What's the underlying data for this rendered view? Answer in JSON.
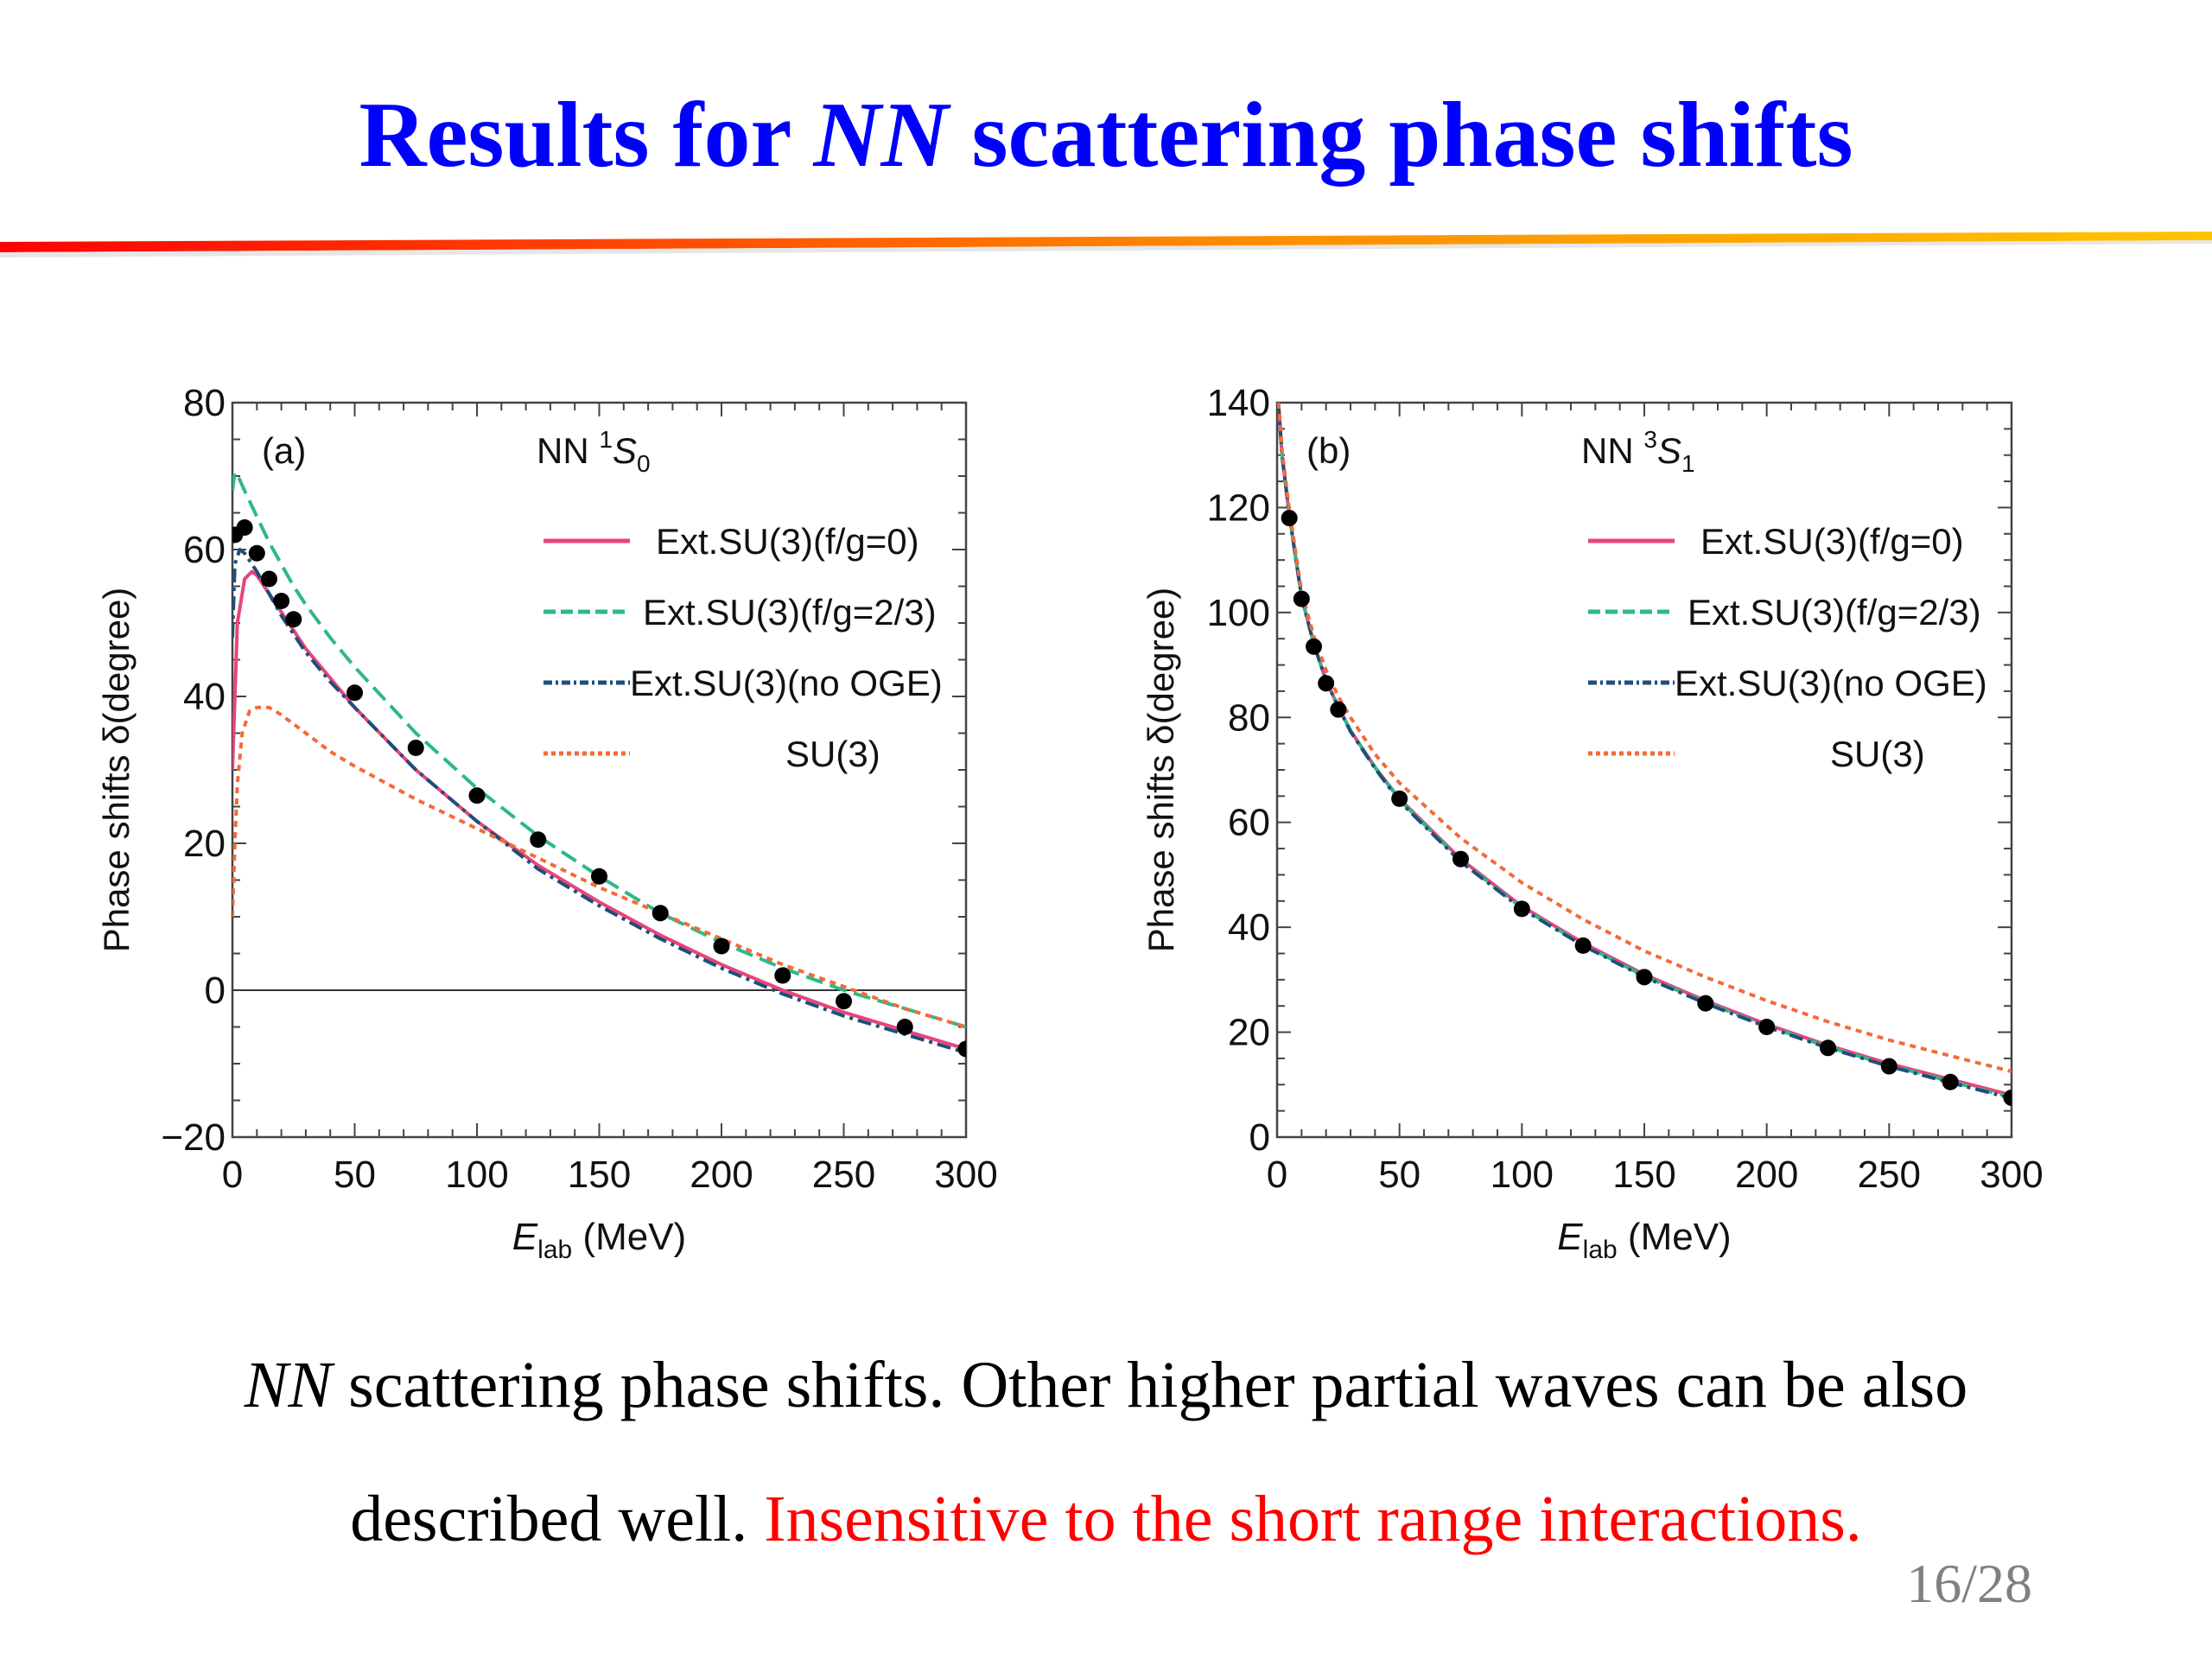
{
  "slide": {
    "title_parts": {
      "pre": "Results for ",
      "ital": "NN",
      "post": " scattering phase shifts"
    },
    "caption_line1": {
      "ital": "NN",
      "text": " scattering phase shifts. Other higher partial waves can be also"
    },
    "caption_line2": {
      "black": "described well. ",
      "red": "Insensitive to the short range interactions."
    },
    "page_number": "16/28",
    "colors": {
      "title": "#0000ff",
      "highlight": "#ff0000",
      "rule_start": "#ff0000",
      "rule_end": "#ffc000"
    }
  },
  "chart_data": [
    {
      "type": "line",
      "panel_label": "(a)",
      "title": "NN 1S0",
      "title_parts": {
        "prefix": "NN ",
        "sup": "1",
        "main": "S",
        "sub": "0"
      },
      "xlabel": "E_lab (MeV)",
      "xlabel_parts": {
        "main": "E",
        "sub": "lab",
        "unit": " (MeV)"
      },
      "ylabel": "Phase shifts δ(degree)",
      "xlim": [
        0,
        300
      ],
      "ylim": [
        -20,
        80
      ],
      "xticks": [
        0,
        50,
        100,
        150,
        200,
        250,
        300
      ],
      "yticks": [
        -20,
        0,
        20,
        40,
        60,
        80
      ],
      "ytick_labels": [
        "−20",
        "0",
        "20",
        "40",
        "60",
        "80"
      ],
      "zero_line": true,
      "legend_position": "top-right",
      "series": [
        {
          "name": "Ext.SU(3)(f/g=0)",
          "style": "solid",
          "color": "#e8457a",
          "x": [
            0,
            2,
            5,
            8,
            10,
            15,
            20,
            25,
            30,
            40,
            50,
            75,
            100,
            125,
            150,
            175,
            200,
            225,
            250,
            275,
            300
          ],
          "y": [
            30,
            50,
            56,
            57,
            56.5,
            54,
            51.5,
            49,
            46.5,
            42.5,
            38.5,
            30,
            23,
            17,
            12,
            7.5,
            3.5,
            0,
            -3,
            -5.5,
            -8
          ]
        },
        {
          "name": "Ext.SU(3)(f/g=2/3)",
          "style": "dashed",
          "color": "#2eb88a",
          "x": [
            0,
            1,
            3,
            5,
            10,
            15,
            20,
            25,
            30,
            40,
            50,
            75,
            100,
            125,
            150,
            175,
            200,
            225,
            250,
            275,
            300
          ],
          "y": [
            68,
            70.5,
            69.5,
            68,
            64.5,
            61,
            58,
            55,
            52.5,
            48,
            44,
            35,
            27.5,
            21,
            15.5,
            10.5,
            6.5,
            3,
            0,
            -2.5,
            -5
          ]
        },
        {
          "name": "Ext.SU(3)(no OGE)",
          "style": "dashdot",
          "color": "#1f4e79",
          "x": [
            0,
            1,
            3,
            5,
            10,
            15,
            20,
            25,
            30,
            40,
            50,
            75,
            100,
            125,
            150,
            175,
            200,
            225,
            250,
            275,
            300
          ],
          "y": [
            48,
            58,
            60,
            59.5,
            57,
            54,
            51,
            48.5,
            46,
            42,
            38.5,
            30,
            23,
            16.5,
            11.5,
            7,
            3,
            -0.5,
            -3.5,
            -6,
            -8.5
          ]
        },
        {
          "name": "SU(3)",
          "style": "dotted",
          "color": "#f26b3a",
          "x": [
            0,
            1,
            2,
            4,
            7,
            10,
            15,
            20,
            30,
            40,
            50,
            75,
            100,
            125,
            150,
            175,
            200,
            225,
            250,
            275,
            300
          ],
          "y": [
            10,
            20,
            28,
            35,
            38,
            38.5,
            38.5,
            37.5,
            35,
            32.5,
            30.5,
            26,
            22,
            18,
            14,
            10.5,
            7,
            3.5,
            0.5,
            -2.5,
            -5
          ]
        },
        {
          "name": "data",
          "style": "points",
          "color": "#000000",
          "x": [
            1,
            5,
            10,
            15,
            20,
            25,
            50,
            75,
            100,
            125,
            150,
            175,
            200,
            225,
            250,
            275,
            300
          ],
          "y": [
            62,
            63,
            59.5,
            56,
            53,
            50.5,
            40.5,
            33,
            26.5,
            20.5,
            15.5,
            10.5,
            6,
            2,
            -1.5,
            -5,
            -8
          ]
        }
      ]
    },
    {
      "type": "line",
      "panel_label": "(b)",
      "title": "NN 3S1",
      "title_parts": {
        "prefix": "NN ",
        "sup": "3",
        "main": "S",
        "sub": "1"
      },
      "xlabel": "E_lab (MeV)",
      "xlabel_parts": {
        "main": "E",
        "sub": "lab",
        "unit": " (MeV)"
      },
      "ylabel": "Phase shifts δ(degree)",
      "xlim": [
        0,
        300
      ],
      "ylim": [
        0,
        140
      ],
      "xticks": [
        0,
        50,
        100,
        150,
        200,
        250,
        300
      ],
      "yticks": [
        0,
        20,
        40,
        60,
        80,
        100,
        120,
        140
      ],
      "ytick_labels": [
        "0",
        "20",
        "40",
        "60",
        "80",
        "100",
        "120",
        "140"
      ],
      "zero_line": false,
      "legend_position": "top-right",
      "series": [
        {
          "name": "Ext.SU(3)(f/g=0)",
          "style": "solid",
          "color": "#e8457a",
          "x": [
            0.5,
            1,
            2,
            5,
            10,
            15,
            20,
            25,
            30,
            40,
            50,
            75,
            100,
            125,
            150,
            175,
            200,
            225,
            250,
            275,
            300
          ],
          "y": [
            140,
            137,
            130,
            118.5,
            103,
            94,
            87,
            82,
            77.5,
            70.5,
            64.5,
            53,
            44,
            37,
            31,
            26,
            21.5,
            17.5,
            14,
            11,
            8
          ]
        },
        {
          "name": "Ext.SU(3)(f/g=2/3)",
          "style": "dashed",
          "color": "#2eb88a",
          "x": [
            0.5,
            1,
            2,
            5,
            10,
            15,
            20,
            25,
            30,
            40,
            50,
            75,
            100,
            125,
            150,
            175,
            200,
            225,
            250,
            275,
            300
          ],
          "y": [
            140,
            137,
            130,
            118.5,
            103,
            94,
            87,
            82,
            77.5,
            70.5,
            64.3,
            52.7,
            43.7,
            36.7,
            30.7,
            25.7,
            21.2,
            17.2,
            13.7,
            10.6,
            7.6
          ]
        },
        {
          "name": "Ext.SU(3)(no OGE)",
          "style": "dashdot",
          "color": "#1f4e79",
          "x": [
            0.5,
            1,
            2,
            5,
            10,
            15,
            20,
            25,
            30,
            40,
            50,
            75,
            100,
            125,
            150,
            175,
            200,
            225,
            250,
            275,
            300
          ],
          "y": [
            140,
            137,
            130,
            118.5,
            103,
            94,
            87,
            82,
            77.3,
            70.3,
            64,
            52.5,
            43.5,
            36.5,
            30.5,
            25.5,
            21,
            17,
            13.5,
            10.4,
            7.4
          ]
        },
        {
          "name": "SU(3)",
          "style": "dotted",
          "color": "#f26b3a",
          "x": [
            0.5,
            1,
            2,
            5,
            10,
            15,
            20,
            25,
            30,
            40,
            50,
            75,
            100,
            125,
            150,
            175,
            200,
            225,
            250,
            275,
            300
          ],
          "y": [
            140,
            138,
            131,
            119.5,
            104,
            95.5,
            89,
            84,
            80,
            73,
            67.5,
            57,
            48.5,
            41.5,
            35.5,
            30.5,
            26,
            22,
            18.5,
            15.5,
            12.5
          ]
        },
        {
          "name": "data",
          "style": "points",
          "color": "#000000",
          "x": [
            5,
            10,
            15,
            20,
            25,
            50,
            75,
            100,
            125,
            150,
            175,
            200,
            225,
            250,
            275,
            300
          ],
          "y": [
            118,
            102.6,
            93.5,
            86.5,
            81.5,
            64.5,
            53,
            43.5,
            36.5,
            30.5,
            25.5,
            21,
            17,
            13.5,
            10.5,
            7.5
          ]
        }
      ]
    }
  ]
}
